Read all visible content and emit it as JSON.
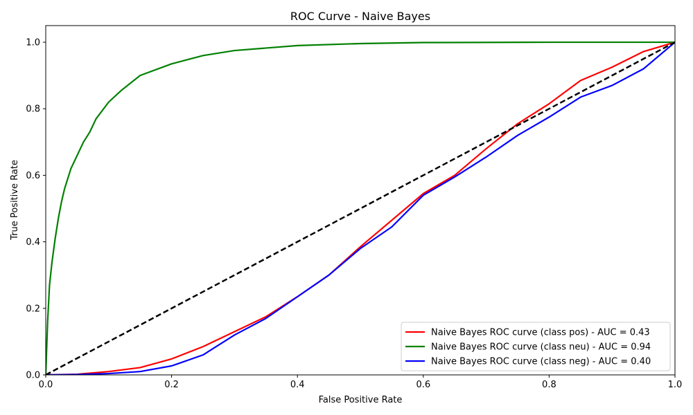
{
  "chart_data": {
    "type": "line",
    "title": "ROC Curve - Naive Bayes",
    "xlabel": "False Positive Rate",
    "ylabel": "True Positive Rate",
    "xlim": [
      0.0,
      1.0
    ],
    "ylim": [
      0.0,
      1.05
    ],
    "xticks": [
      0.0,
      0.2,
      0.4,
      0.6,
      0.8,
      1.0
    ],
    "yticks": [
      0.0,
      0.2,
      0.4,
      0.6,
      0.8,
      1.0
    ],
    "xtick_labels": [
      "0.0",
      "0.2",
      "0.4",
      "0.6",
      "0.8",
      "1.0"
    ],
    "ytick_labels": [
      "0.0",
      "0.2",
      "0.4",
      "0.6",
      "0.8",
      "1.0"
    ],
    "grid": false,
    "legend_position": "lower-right",
    "series": [
      {
        "name": "Naive Bayes ROC curve (class pos) - AUC = 0.43",
        "color": "#ff0000",
        "style": "solid",
        "x": [
          0.0,
          0.05,
          0.1,
          0.15,
          0.2,
          0.25,
          0.3,
          0.35,
          0.4,
          0.45,
          0.5,
          0.55,
          0.6,
          0.65,
          0.7,
          0.75,
          0.8,
          0.85,
          0.9,
          0.95,
          1.0
        ],
        "y": [
          0.0,
          0.002,
          0.01,
          0.022,
          0.048,
          0.085,
          0.13,
          0.175,
          0.235,
          0.3,
          0.385,
          0.465,
          0.545,
          0.6,
          0.68,
          0.755,
          0.815,
          0.885,
          0.925,
          0.972,
          1.0
        ]
      },
      {
        "name": "Naive Bayes ROC curve (class neu) - AUC = 0.94",
        "color": "#008000",
        "style": "solid",
        "x": [
          0.0,
          0.003,
          0.006,
          0.01,
          0.015,
          0.02,
          0.025,
          0.03,
          0.04,
          0.05,
          0.06,
          0.07,
          0.08,
          0.1,
          0.12,
          0.15,
          0.2,
          0.25,
          0.3,
          0.4,
          0.5,
          0.6,
          0.8,
          1.0
        ],
        "y": [
          0.0,
          0.16,
          0.27,
          0.34,
          0.41,
          0.47,
          0.52,
          0.56,
          0.62,
          0.66,
          0.7,
          0.73,
          0.77,
          0.82,
          0.855,
          0.9,
          0.935,
          0.96,
          0.975,
          0.99,
          0.996,
          0.999,
          1.0,
          1.0
        ]
      },
      {
        "name": "Naive Bayes ROC curve (class neg) - AUC = 0.40",
        "color": "#0000ff",
        "style": "solid",
        "x": [
          0.0,
          0.05,
          0.1,
          0.15,
          0.2,
          0.25,
          0.3,
          0.35,
          0.4,
          0.45,
          0.5,
          0.55,
          0.6,
          0.65,
          0.7,
          0.75,
          0.8,
          0.85,
          0.9,
          0.95,
          1.0
        ],
        "y": [
          0.0,
          0.001,
          0.004,
          0.01,
          0.027,
          0.06,
          0.12,
          0.17,
          0.235,
          0.3,
          0.38,
          0.445,
          0.54,
          0.595,
          0.655,
          0.72,
          0.775,
          0.835,
          0.87,
          0.92,
          1.0
        ]
      },
      {
        "name": "chance",
        "color": "#000000",
        "style": "dashed",
        "legend": false,
        "x": [
          0.0,
          1.0
        ],
        "y": [
          0.0,
          1.0
        ]
      }
    ]
  }
}
